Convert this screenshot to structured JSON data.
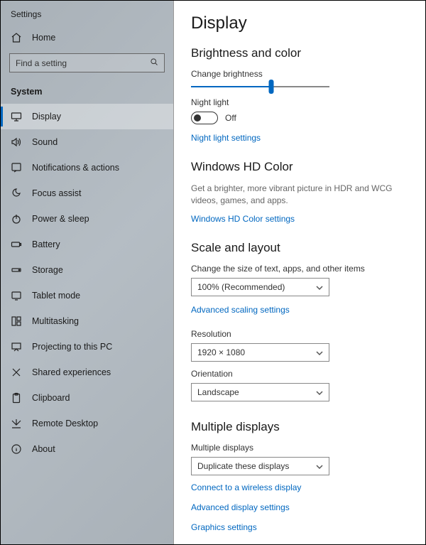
{
  "colors": {
    "accent": "#0067c0",
    "link": "#0067c0",
    "sidebar_bg_from": "#a9b1b8",
    "sidebar_bg_to": "#a9b1b8",
    "border": "#888888",
    "text": "#1a1a1a",
    "muted": "#666666"
  },
  "sidebar": {
    "app_title": "Settings",
    "home_label": "Home",
    "search_placeholder": "Find a setting",
    "category": "System",
    "items": [
      {
        "label": "Display",
        "icon": "display-icon",
        "active": true
      },
      {
        "label": "Sound",
        "icon": "sound-icon",
        "active": false
      },
      {
        "label": "Notifications & actions",
        "icon": "notifications-icon",
        "active": false
      },
      {
        "label": "Focus assist",
        "icon": "focus-assist-icon",
        "active": false
      },
      {
        "label": "Power & sleep",
        "icon": "power-icon",
        "active": false
      },
      {
        "label": "Battery",
        "icon": "battery-icon",
        "active": false
      },
      {
        "label": "Storage",
        "icon": "storage-icon",
        "active": false
      },
      {
        "label": "Tablet mode",
        "icon": "tablet-icon",
        "active": false
      },
      {
        "label": "Multitasking",
        "icon": "multitasking-icon",
        "active": false
      },
      {
        "label": "Projecting to this PC",
        "icon": "projecting-icon",
        "active": false
      },
      {
        "label": "Shared experiences",
        "icon": "shared-icon",
        "active": false
      },
      {
        "label": "Clipboard",
        "icon": "clipboard-icon",
        "active": false
      },
      {
        "label": "Remote Desktop",
        "icon": "remote-icon",
        "active": false
      },
      {
        "label": "About",
        "icon": "about-icon",
        "active": false
      }
    ]
  },
  "main": {
    "title": "Display",
    "brightness": {
      "section_title": "Brightness and color",
      "slider_label": "Change brightness",
      "slider_value_pct": 58,
      "night_light_label": "Night light",
      "night_light_state": "Off",
      "night_light_on": false,
      "night_light_link": "Night light settings"
    },
    "hdcolor": {
      "section_title": "Windows HD Color",
      "description": "Get a brighter, more vibrant picture in HDR and WCG videos, games, and apps.",
      "link": "Windows HD Color settings"
    },
    "scale": {
      "section_title": "Scale and layout",
      "size_label": "Change the size of text, apps, and other items",
      "size_value": "100% (Recommended)",
      "advanced_scaling_link": "Advanced scaling settings",
      "resolution_label": "Resolution",
      "resolution_value": "1920 × 1080",
      "orientation_label": "Orientation",
      "orientation_value": "Landscape"
    },
    "multiple": {
      "section_title": "Multiple displays",
      "label": "Multiple displays",
      "value": "Duplicate these displays",
      "connect_link": "Connect to a wireless display",
      "advanced_link": "Advanced display settings",
      "graphics_link": "Graphics settings"
    }
  }
}
